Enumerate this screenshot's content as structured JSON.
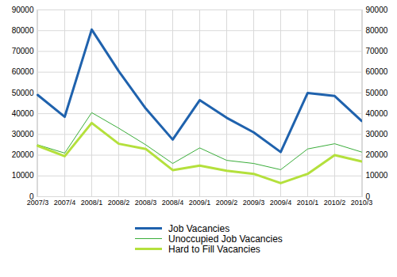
{
  "chart_data": {
    "type": "line",
    "categories": [
      "2007/3",
      "2007/4",
      "2008/1",
      "2008/2",
      "2008/3",
      "2008/4",
      "2009/1",
      "2009/2",
      "2009/3",
      "2009/4",
      "2010/1",
      "2010/2",
      "2010/3"
    ],
    "series": [
      {
        "name": "Job Vacancies",
        "color": "#1f62ad",
        "values": [
          49000,
          38500,
          80500,
          60500,
          42500,
          27500,
          46500,
          38000,
          31000,
          21500,
          50000,
          48500,
          36500
        ]
      },
      {
        "name": "Unoccupied Job Vacancies",
        "color": "#3aad3a",
        "values": [
          25000,
          21000,
          40500,
          33000,
          25000,
          16000,
          23500,
          17500,
          16000,
          13000,
          23000,
          25500,
          21500
        ]
      },
      {
        "name": "Hard to Fill Vacancies",
        "color": "#b4e03c",
        "values": [
          24500,
          19500,
          35500,
          25500,
          23000,
          12800,
          15000,
          12500,
          11000,
          6500,
          11000,
          20000,
          17000
        ]
      }
    ],
    "ylim": [
      0,
      90000
    ],
    "yticks": [
      0,
      10000,
      20000,
      30000,
      40000,
      50000,
      60000,
      70000,
      80000,
      90000
    ],
    "y2lim": [
      0,
      90000
    ],
    "y2ticks": [
      0,
      10000,
      20000,
      30000,
      40000,
      50000,
      60000,
      70000,
      80000,
      90000
    ],
    "grid": true,
    "legend": "bottom"
  }
}
